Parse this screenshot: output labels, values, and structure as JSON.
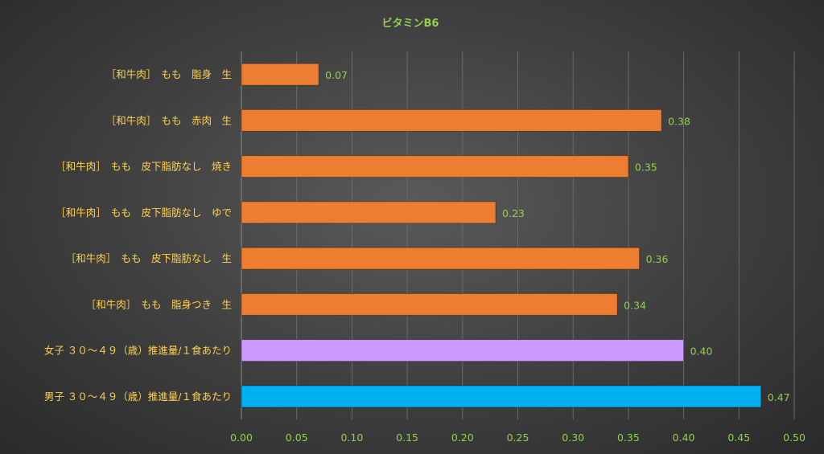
{
  "chart_data": {
    "type": "bar",
    "orientation": "horizontal",
    "title": "ビタミンB6",
    "xlabel": "",
    "ylabel": "",
    "xlim": [
      0,
      0.5
    ],
    "ticks": [
      "0.00",
      "0.05",
      "0.10",
      "0.15",
      "0.20",
      "0.25",
      "0.30",
      "0.35",
      "0.40",
      "0.45",
      "0.50"
    ],
    "grid": true,
    "bars": [
      {
        "label": "［和牛肉］　もも　脂身　生",
        "value": 0.07,
        "value_label": "0.07",
        "color": "#ed7d31"
      },
      {
        "label": "［和牛肉］　もも　赤肉　生",
        "value": 0.38,
        "value_label": "0.38",
        "color": "#ed7d31"
      },
      {
        "label": "［和牛肉］　もも　皮下脂肪なし　焼き",
        "value": 0.35,
        "value_label": "0.35",
        "color": "#ed7d31"
      },
      {
        "label": "［和牛肉］　もも　皮下脂肪なし　ゆで",
        "value": 0.23,
        "value_label": "0.23",
        "color": "#ed7d31"
      },
      {
        "label": "［和牛肉］　もも　皮下脂肪なし　生",
        "value": 0.36,
        "value_label": "0.36",
        "color": "#ed7d31"
      },
      {
        "label": "［和牛肉］　もも　脂身つき　生",
        "value": 0.34,
        "value_label": "0.34",
        "color": "#ed7d31"
      },
      {
        "label": "女子 ３０～４９（歳）推進量/１食あたり",
        "value": 0.4,
        "value_label": "0.40",
        "color": "#cc99ff"
      },
      {
        "label": "男子 ３０～４９（歳）推進量/１食あたり",
        "value": 0.47,
        "value_label": "0.47",
        "color": "#00b0f0"
      }
    ]
  }
}
